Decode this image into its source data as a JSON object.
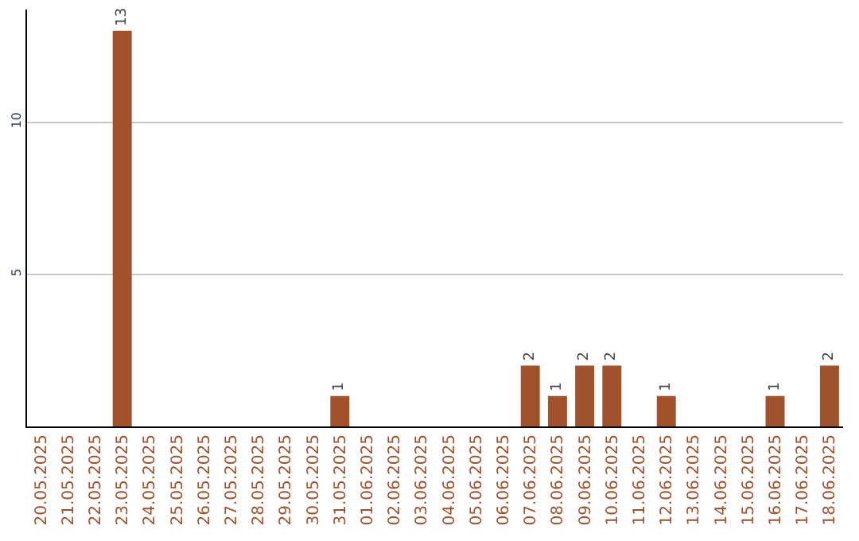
{
  "chart_data": {
    "type": "bar",
    "categories": [
      "20.05.2025",
      "21.05.2025",
      "22.05.2025",
      "23.05.2025",
      "24.05.2025",
      "25.05.2025",
      "26.05.2025",
      "27.05.2025",
      "28.05.2025",
      "29.05.2025",
      "30.05.2025",
      "31.05.2025",
      "01.06.2025",
      "02.06.2025",
      "03.06.2025",
      "04.06.2025",
      "05.06.2025",
      "06.06.2025",
      "07.06.2025",
      "08.06.2025",
      "09.06.2025",
      "10.06.2025",
      "11.06.2025",
      "12.06.2025",
      "13.06.2025",
      "14.06.2025",
      "15.06.2025",
      "16.06.2025",
      "17.06.2025",
      "18.06.2025"
    ],
    "values": [
      0,
      0,
      0,
      13,
      0,
      0,
      0,
      0,
      0,
      0,
      0,
      1,
      0,
      0,
      0,
      0,
      0,
      0,
      2,
      1,
      2,
      2,
      0,
      1,
      0,
      0,
      0,
      1,
      0,
      2
    ],
    "value_labels": [
      null,
      null,
      null,
      "13",
      null,
      null,
      null,
      null,
      null,
      null,
      null,
      "1",
      null,
      null,
      null,
      null,
      null,
      null,
      "2",
      "1",
      "2",
      "2",
      null,
      "1",
      null,
      null,
      null,
      "1",
      null,
      "2"
    ],
    "color": "#a0522d",
    "ylim": [
      0,
      13.7
    ],
    "yticks": [
      5,
      10
    ],
    "grid": "y",
    "legend": false
  }
}
